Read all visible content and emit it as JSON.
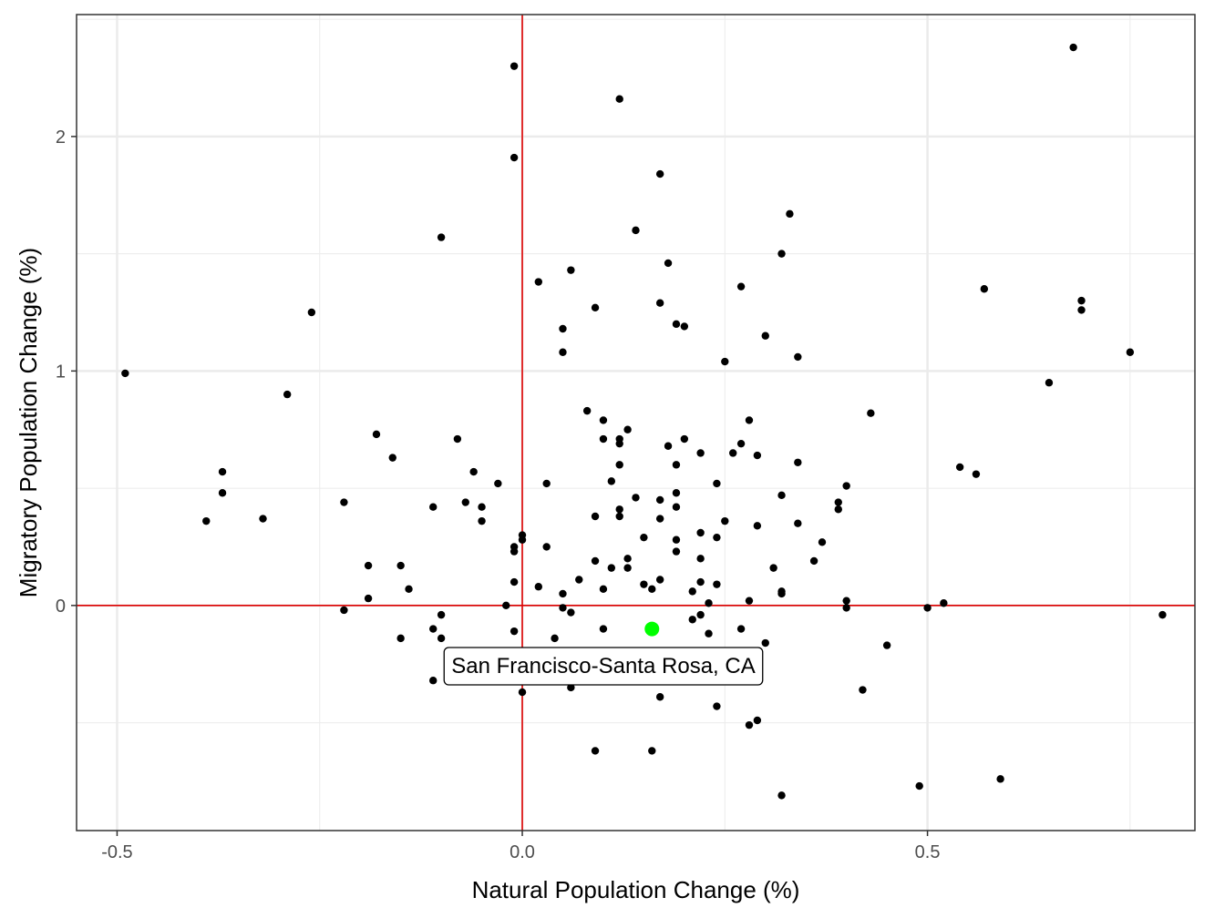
{
  "chart_data": {
    "type": "scatter",
    "title": "",
    "xlabel": "Natural Population Change (%)",
    "ylabel": "Migratory Population Change (%)",
    "xlim": [
      -0.55,
      0.83
    ],
    "ylim": [
      -0.96,
      2.52
    ],
    "x_ticks": [
      -0.5,
      0.0,
      0.5
    ],
    "x_tick_labels": [
      "-0.5",
      "0.0",
      "0.5"
    ],
    "y_ticks": [
      0,
      1,
      2
    ],
    "y_tick_labels": [
      "0",
      "1",
      "2"
    ],
    "grid": true,
    "reference_lines": {
      "x": 0,
      "y": 0,
      "color": "#dd0000"
    },
    "point_color": "#000000",
    "highlight_color": "#00ff00",
    "highlight": {
      "x": 0.16,
      "y": -0.1,
      "label": "San Francisco-Santa Rosa, CA"
    },
    "points": [
      [
        -0.49,
        0.99
      ],
      [
        -0.39,
        0.36
      ],
      [
        -0.37,
        0.57
      ],
      [
        -0.37,
        0.48
      ],
      [
        -0.32,
        0.37
      ],
      [
        -0.29,
        0.9
      ],
      [
        -0.26,
        1.25
      ],
      [
        -0.22,
        0.44
      ],
      [
        -0.22,
        -0.02
      ],
      [
        -0.19,
        0.17
      ],
      [
        -0.19,
        0.03
      ],
      [
        -0.18,
        0.73
      ],
      [
        -0.16,
        0.63
      ],
      [
        -0.15,
        0.17
      ],
      [
        -0.15,
        -0.14
      ],
      [
        -0.14,
        0.07
      ],
      [
        -0.11,
        0.42
      ],
      [
        -0.11,
        -0.1
      ],
      [
        -0.11,
        -0.32
      ],
      [
        -0.1,
        1.57
      ],
      [
        -0.1,
        -0.04
      ],
      [
        -0.1,
        -0.14
      ],
      [
        -0.08,
        0.71
      ],
      [
        -0.07,
        0.44
      ],
      [
        -0.06,
        0.57
      ],
      [
        -0.05,
        0.42
      ],
      [
        -0.05,
        0.36
      ],
      [
        -0.03,
        0.52
      ],
      [
        -0.02,
        0.0
      ],
      [
        -0.01,
        2.3
      ],
      [
        -0.01,
        1.91
      ],
      [
        -0.01,
        0.25
      ],
      [
        -0.01,
        0.23
      ],
      [
        -0.01,
        0.1
      ],
      [
        -0.01,
        -0.11
      ],
      [
        0.0,
        0.3
      ],
      [
        0.0,
        0.28
      ],
      [
        0.0,
        -0.37
      ],
      [
        0.02,
        1.38
      ],
      [
        0.02,
        0.08
      ],
      [
        0.03,
        0.52
      ],
      [
        0.03,
        0.25
      ],
      [
        0.04,
        -0.14
      ],
      [
        0.05,
        1.18
      ],
      [
        0.05,
        1.08
      ],
      [
        0.05,
        0.05
      ],
      [
        0.05,
        -0.01
      ],
      [
        0.06,
        1.43
      ],
      [
        0.06,
        -0.03
      ],
      [
        0.06,
        -0.35
      ],
      [
        0.07,
        0.11
      ],
      [
        0.08,
        0.83
      ],
      [
        0.09,
        1.27
      ],
      [
        0.09,
        0.38
      ],
      [
        0.09,
        0.19
      ],
      [
        0.09,
        -0.62
      ],
      [
        0.1,
        0.79
      ],
      [
        0.1,
        0.71
      ],
      [
        0.1,
        0.07
      ],
      [
        0.1,
        -0.1
      ],
      [
        0.11,
        0.53
      ],
      [
        0.11,
        0.16
      ],
      [
        0.12,
        2.16
      ],
      [
        0.12,
        0.71
      ],
      [
        0.12,
        0.69
      ],
      [
        0.12,
        0.6
      ],
      [
        0.12,
        0.41
      ],
      [
        0.12,
        0.38
      ],
      [
        0.13,
        0.75
      ],
      [
        0.13,
        0.2
      ],
      [
        0.13,
        0.16
      ],
      [
        0.14,
        1.6
      ],
      [
        0.14,
        0.46
      ],
      [
        0.15,
        0.29
      ],
      [
        0.15,
        0.09
      ],
      [
        0.16,
        0.07
      ],
      [
        0.16,
        -0.62
      ],
      [
        0.17,
        1.84
      ],
      [
        0.17,
        1.29
      ],
      [
        0.17,
        0.45
      ],
      [
        0.17,
        0.37
      ],
      [
        0.17,
        0.11
      ],
      [
        0.17,
        -0.39
      ],
      [
        0.18,
        1.46
      ],
      [
        0.18,
        0.68
      ],
      [
        0.19,
        1.2
      ],
      [
        0.19,
        0.6
      ],
      [
        0.19,
        0.48
      ],
      [
        0.19,
        0.42
      ],
      [
        0.19,
        0.28
      ],
      [
        0.19,
        0.23
      ],
      [
        0.2,
        1.19
      ],
      [
        0.2,
        0.71
      ],
      [
        0.21,
        0.06
      ],
      [
        0.21,
        -0.06
      ],
      [
        0.22,
        0.65
      ],
      [
        0.22,
        0.31
      ],
      [
        0.22,
        0.2
      ],
      [
        0.22,
        0.1
      ],
      [
        0.22,
        -0.04
      ],
      [
        0.23,
        0.01
      ],
      [
        0.23,
        -0.12
      ],
      [
        0.24,
        0.52
      ],
      [
        0.24,
        0.29
      ],
      [
        0.24,
        0.09
      ],
      [
        0.24,
        -0.43
      ],
      [
        0.25,
        1.04
      ],
      [
        0.25,
        0.36
      ],
      [
        0.26,
        0.65
      ],
      [
        0.27,
        1.36
      ],
      [
        0.27,
        0.69
      ],
      [
        0.27,
        -0.1
      ],
      [
        0.28,
        0.79
      ],
      [
        0.28,
        0.02
      ],
      [
        0.28,
        -0.51
      ],
      [
        0.29,
        0.64
      ],
      [
        0.29,
        0.34
      ],
      [
        0.29,
        -0.49
      ],
      [
        0.3,
        1.15
      ],
      [
        0.3,
        -0.16
      ],
      [
        0.31,
        0.16
      ],
      [
        0.32,
        1.5
      ],
      [
        0.32,
        0.47
      ],
      [
        0.32,
        0.06
      ],
      [
        0.32,
        0.05
      ],
      [
        0.32,
        -0.81
      ],
      [
        0.33,
        1.67
      ],
      [
        0.34,
        1.06
      ],
      [
        0.34,
        0.61
      ],
      [
        0.34,
        0.35
      ],
      [
        0.36,
        0.19
      ],
      [
        0.37,
        0.27
      ],
      [
        0.39,
        0.44
      ],
      [
        0.39,
        0.41
      ],
      [
        0.4,
        0.51
      ],
      [
        0.4,
        0.02
      ],
      [
        0.4,
        -0.01
      ],
      [
        0.42,
        -0.36
      ],
      [
        0.43,
        0.82
      ],
      [
        0.45,
        -0.17
      ],
      [
        0.49,
        -0.77
      ],
      [
        0.5,
        -0.01
      ],
      [
        0.52,
        0.01
      ],
      [
        0.54,
        0.59
      ],
      [
        0.56,
        0.56
      ],
      [
        0.57,
        1.35
      ],
      [
        0.59,
        -0.74
      ],
      [
        0.65,
        0.95
      ],
      [
        0.68,
        2.38
      ],
      [
        0.69,
        1.3
      ],
      [
        0.69,
        1.26
      ],
      [
        0.75,
        1.08
      ],
      [
        0.79,
        -0.04
      ]
    ]
  }
}
